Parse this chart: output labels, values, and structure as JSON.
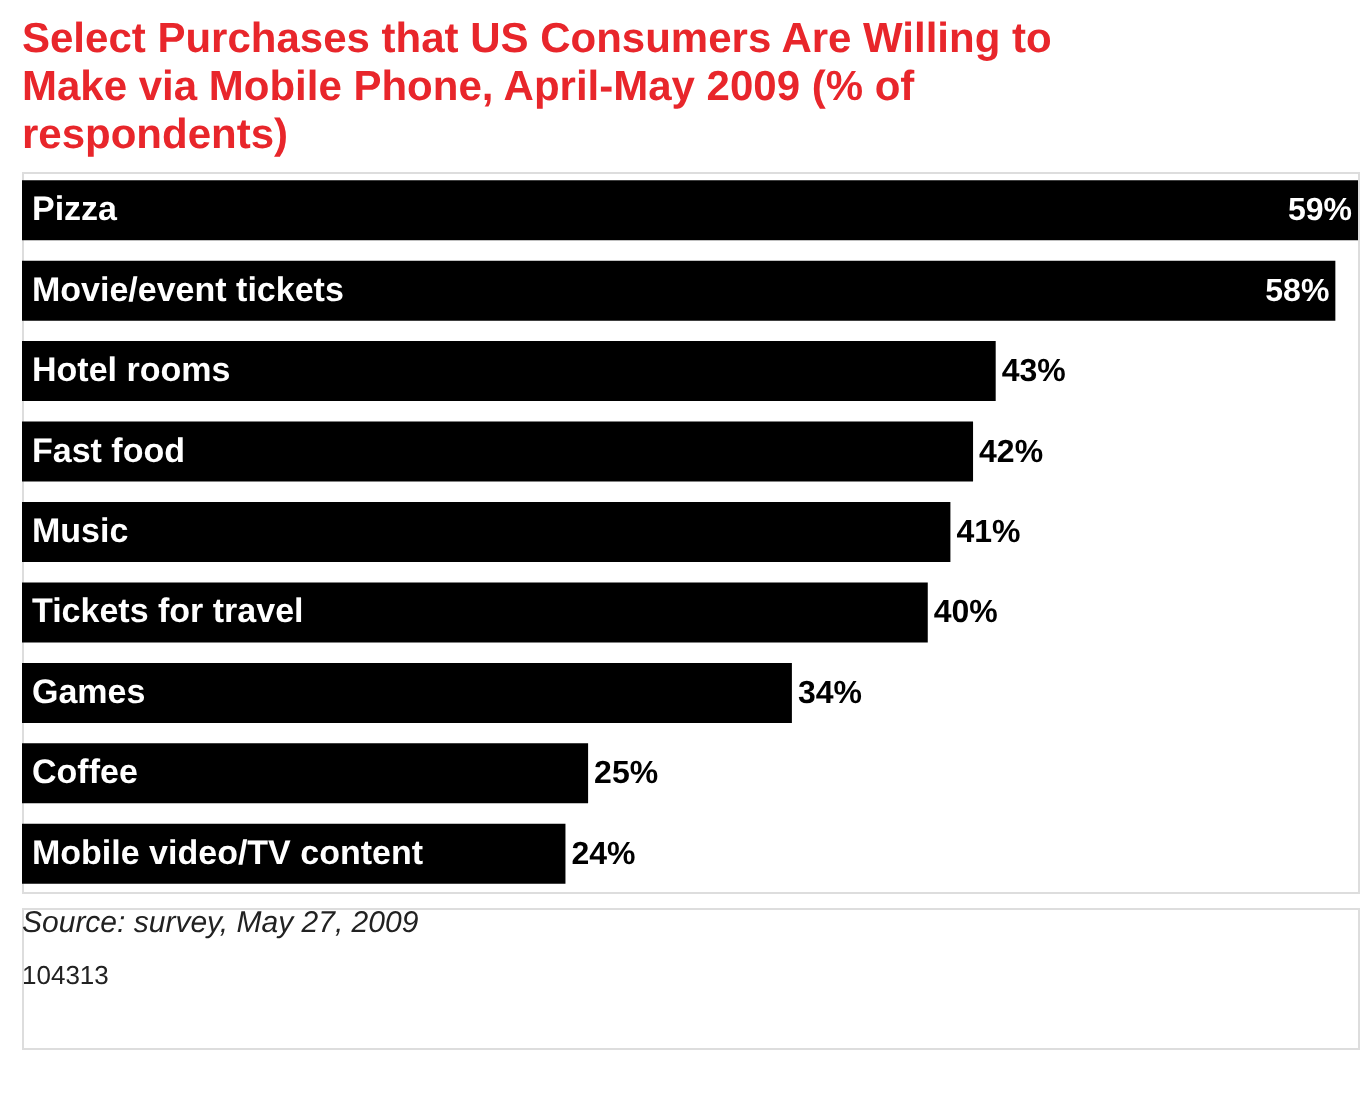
{
  "chart_data": {
    "type": "bar",
    "orientation": "horizontal",
    "title": "Select Purchases that US Consumers Are Willing to Make via Mobile Phone, April-May 2009 (% of respondents)",
    "categories": [
      "Pizza",
      "Movie/event tickets",
      "Hotel rooms",
      "Fast food",
      "Music",
      "Tickets for travel",
      "Games",
      "Coffee",
      "Mobile video/TV content"
    ],
    "values": [
      59,
      58,
      43,
      42,
      41,
      40,
      34,
      25,
      24
    ],
    "value_labels": [
      "59%",
      "58%",
      "43%",
      "42%",
      "41%",
      "40%",
      "34%",
      "25%",
      "24%"
    ],
    "color": "#000000",
    "annotations": [
      "Source: survey, May 27, 2009",
      "104313"
    ]
  }
}
